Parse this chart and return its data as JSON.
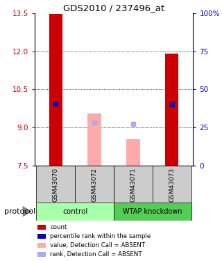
{
  "title": "GDS2010 / 237496_at",
  "samples": [
    "GSM43070",
    "GSM43072",
    "GSM43071",
    "GSM43073"
  ],
  "ylim_left": [
    7.5,
    13.5
  ],
  "ylim_right": [
    0,
    100
  ],
  "yticks_left": [
    7.5,
    9.0,
    10.5,
    12.0,
    13.5
  ],
  "yticks_right": [
    0,
    25,
    50,
    75,
    100
  ],
  "ytick_labels_right": [
    "0",
    "25",
    "50",
    "75",
    "100%"
  ],
  "red_bars": {
    "GSM43070": [
      7.5,
      13.47
    ],
    "GSM43072": null,
    "GSM43071": null,
    "GSM43073": [
      7.5,
      11.9
    ]
  },
  "blue_squares": {
    "GSM43070": 9.95,
    "GSM43072": null,
    "GSM43071": null,
    "GSM43073": 9.9
  },
  "pink_bars": {
    "GSM43070": null,
    "GSM43072": [
      7.5,
      9.55
    ],
    "GSM43071": [
      7.5,
      8.55
    ],
    "GSM43073": null
  },
  "light_blue_squares": {
    "GSM43070": null,
    "GSM43072": 9.2,
    "GSM43071": 9.15,
    "GSM43073": null
  },
  "bar_width": 0.35,
  "red_color": "#cc0000",
  "blue_color": "#0000cc",
  "pink_color": "#ffaaaa",
  "light_blue_color": "#aaaaee",
  "control_color": "#aaffaa",
  "knockdown_color": "#55cc55",
  "gray_color": "#cccccc",
  "legend_items": [
    {
      "color": "#cc0000",
      "label": "count"
    },
    {
      "color": "#0000cc",
      "label": "percentile rank within the sample"
    },
    {
      "color": "#ffaaaa",
      "label": "value, Detection Call = ABSENT"
    },
    {
      "color": "#aaaaee",
      "label": "rank, Detection Call = ABSENT"
    }
  ],
  "protocol_label": "protocol",
  "grid_lines": [
    9.0,
    10.5,
    12.0
  ],
  "dotted_linestyle": "dotted"
}
